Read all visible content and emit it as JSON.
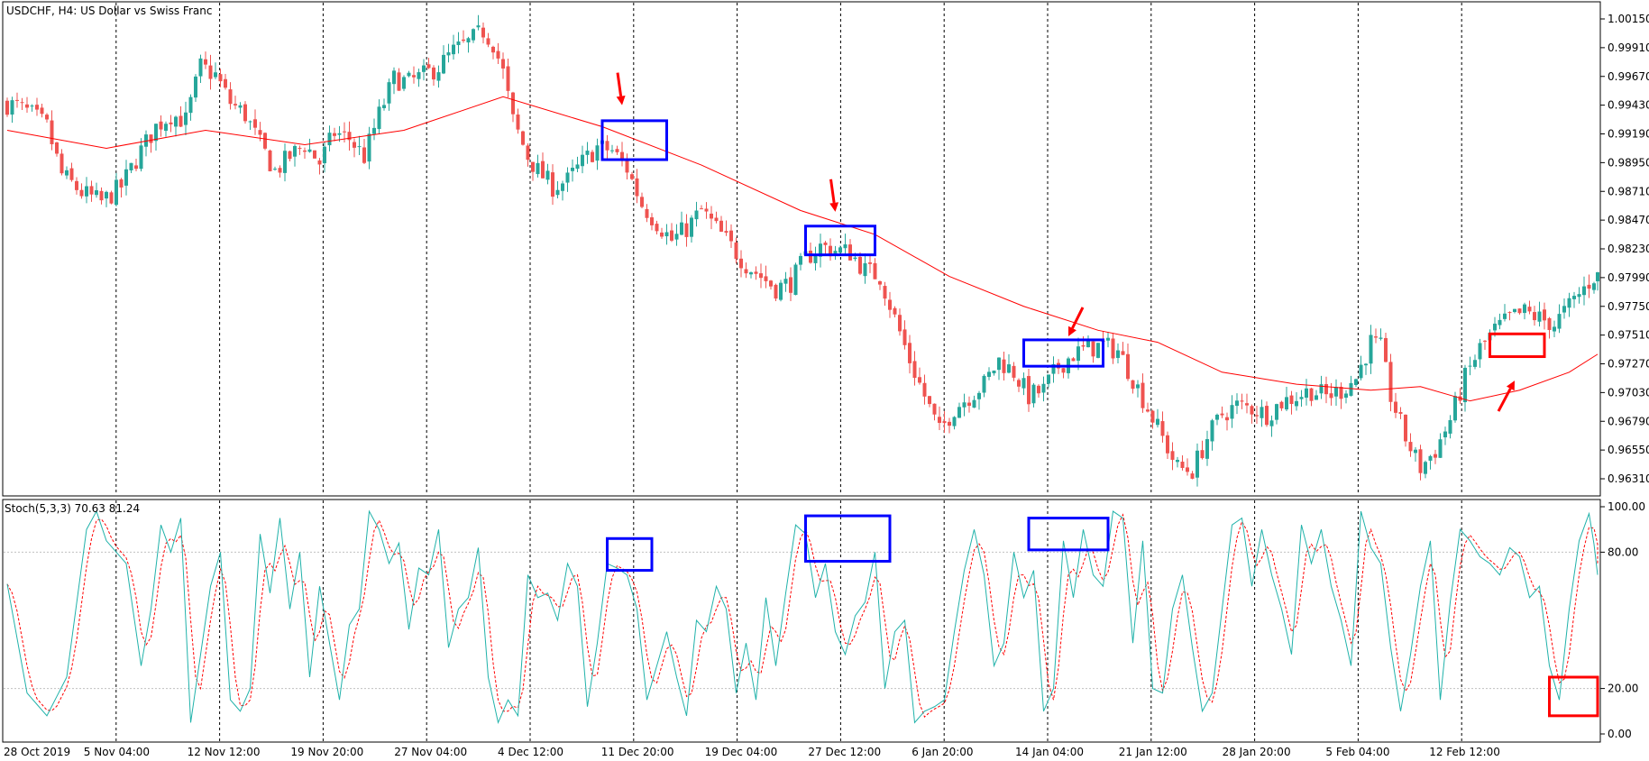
{
  "chart_data": [
    {
      "type": "candlestick",
      "symbol_label": "USDCHF, H4:  US Dollar vs Swiss Franc",
      "price_axis_ticks": [
        "1.00150",
        "0.99910",
        "0.99670",
        "0.99430",
        "0.99190",
        "0.98950",
        "0.98710",
        "0.98470",
        "0.98230",
        "0.97990",
        "0.97750",
        "0.97510",
        "0.97270",
        "0.97030",
        "0.96790",
        "0.96550",
        "0.96310"
      ],
      "ylim": [
        0.9613,
        1.0025
      ],
      "x_labels": [
        "28 Oct 2019",
        "5 Nov 04:00",
        "12 Nov 12:00",
        "19 Nov 20:00",
        "27 Nov 04:00",
        "4 Dec 12:00",
        "11 Dec 20:00",
        "19 Dec 04:00",
        "27 Dec 12:00",
        "6 Jan 20:00",
        "14 Jan 04:00",
        "21 Jan 12:00",
        "28 Jan 20:00",
        "5 Feb 04:00",
        "12 Feb 12:00"
      ],
      "price_path": [
        [
          0,
          0.9945
        ],
        [
          3,
          0.9942
        ],
        [
          6,
          0.9935
        ],
        [
          9,
          0.9925
        ],
        [
          12,
          0.9885
        ],
        [
          16,
          0.987
        ],
        [
          20,
          0.9862
        ],
        [
          24,
          0.9875
        ],
        [
          28,
          0.9905
        ],
        [
          31,
          0.9925
        ],
        [
          34,
          0.9935
        ],
        [
          37,
          0.993
        ],
        [
          40,
          0.9975
        ],
        [
          43,
          0.9968
        ],
        [
          46,
          0.9945
        ],
        [
          49,
          0.9935
        ],
        [
          52,
          0.991
        ],
        [
          55,
          0.9888
        ],
        [
          58,
          0.99
        ],
        [
          61,
          0.991
        ],
        [
          64,
          0.9895
        ],
        [
          67,
          0.992
        ],
        [
          70,
          0.9915
        ],
        [
          73,
          0.99
        ],
        [
          76,
          0.9935
        ],
        [
          79,
          0.9965
        ],
        [
          82,
          0.9962
        ],
        [
          85,
          0.9968
        ],
        [
          88,
          0.9975
        ],
        [
          91,
          0.9988
        ],
        [
          94,
          0.9995
        ],
        [
          97,
          1.0005
        ],
        [
          99,
          0.9995
        ],
        [
          101,
          0.997
        ],
        [
          103,
          0.993
        ],
        [
          106,
          0.99
        ],
        [
          108,
          0.9888
        ],
        [
          111,
          0.9875
        ],
        [
          114,
          0.988
        ],
        [
          117,
          0.9895
        ],
        [
          120,
          0.9908
        ],
        [
          123,
          0.9905
        ],
        [
          126,
          0.989
        ],
        [
          129,
          0.986
        ],
        [
          132,
          0.9845
        ],
        [
          135,
          0.983
        ],
        [
          138,
          0.984
        ],
        [
          141,
          0.9855
        ],
        [
          144,
          0.984
        ],
        [
          147,
          0.9825
        ],
        [
          150,
          0.981
        ],
        [
          153,
          0.98
        ],
        [
          156,
          0.979
        ],
        [
          159,
          0.9795
        ],
        [
          162,
          0.9815
        ],
        [
          165,
          0.9825
        ],
        [
          168,
          0.9822
        ],
        [
          171,
          0.982
        ],
        [
          174,
          0.9805
        ],
        [
          177,
          0.98
        ],
        [
          180,
          0.9765
        ],
        [
          183,
          0.973
        ],
        [
          186,
          0.97
        ],
        [
          189,
          0.967
        ],
        [
          192,
          0.969
        ],
        [
          195,
          0.97
        ],
        [
          198,
          0.971
        ],
        [
          201,
          0.973
        ],
        [
          204,
          0.972
        ],
        [
          207,
          0.97
        ],
        [
          210,
          0.9705
        ],
        [
          213,
          0.9725
        ],
        [
          216,
          0.9735
        ],
        [
          219,
          0.974
        ],
        [
          222,
          0.9742
        ],
        [
          225,
          0.9738
        ],
        [
          228,
          0.9715
        ],
        [
          231,
          0.969
        ],
        [
          234,
          0.9665
        ],
        [
          237,
          0.964
        ],
        [
          240,
          0.9638
        ],
        [
          243,
          0.9665
        ],
        [
          246,
          0.9685
        ],
        [
          249,
          0.9692
        ],
        [
          252,
          0.969
        ],
        [
          255,
          0.9685
        ],
        [
          258,
          0.9695
        ],
        [
          261,
          0.97
        ],
        [
          264,
          0.9705
        ],
        [
          267,
          0.97
        ],
        [
          270,
          0.9705
        ],
        [
          273,
          0.9715
        ],
        [
          276,
          0.9745
        ],
        [
          278,
          0.974
        ],
        [
          280,
          0.97
        ],
        [
          283,
          0.9665
        ],
        [
          286,
          0.964
        ],
        [
          289,
          0.9655
        ],
        [
          292,
          0.968
        ],
        [
          295,
          0.9715
        ],
        [
          298,
          0.974
        ],
        [
          301,
          0.9755
        ],
        [
          304,
          0.9765
        ],
        [
          307,
          0.977
        ],
        [
          310,
          0.9765
        ],
        [
          313,
          0.976
        ],
        [
          316,
          0.9775
        ],
        [
          319,
          0.979
        ],
        [
          321,
          0.98
        ]
      ],
      "ma_path": [
        [
          0,
          0.9922
        ],
        [
          20,
          0.9907
        ],
        [
          40,
          0.9922
        ],
        [
          60,
          0.991
        ],
        [
          80,
          0.9922
        ],
        [
          100,
          0.995
        ],
        [
          120,
          0.9925
        ],
        [
          140,
          0.9893
        ],
        [
          160,
          0.9855
        ],
        [
          175,
          0.9835
        ],
        [
          190,
          0.98
        ],
        [
          205,
          0.9775
        ],
        [
          220,
          0.9755
        ],
        [
          232,
          0.9745
        ],
        [
          245,
          0.972
        ],
        [
          260,
          0.971
        ],
        [
          275,
          0.9705
        ],
        [
          285,
          0.9708
        ],
        [
          295,
          0.9696
        ],
        [
          305,
          0.9705
        ],
        [
          315,
          0.972
        ],
        [
          321,
          0.9735
        ]
      ],
      "annotations": [
        {
          "type": "box",
          "color": "#0000ff",
          "x_range": [
            120,
            133
          ],
          "y_range": [
            0.98975,
            0.993
          ]
        },
        {
          "type": "box",
          "color": "#0000ff",
          "x_range": [
            161,
            175
          ],
          "y_range": [
            0.9818,
            0.9842
          ]
        },
        {
          "type": "box",
          "color": "#0000ff",
          "x_range": [
            205,
            221
          ],
          "y_range": [
            0.9725,
            0.9747
          ]
        },
        {
          "type": "box",
          "color": "#ff0000",
          "x_range": [
            299,
            310
          ],
          "y_range": [
            0.9733,
            0.9752
          ]
        },
        {
          "type": "arrow",
          "color": "#ff0000",
          "direction": "down",
          "at_x": 124,
          "at_y": 0.9943
        },
        {
          "type": "arrow",
          "color": "#ff0000",
          "direction": "down",
          "at_x": 167,
          "at_y": 0.9854
        },
        {
          "type": "arrow",
          "color": "#ff0000",
          "direction": "down-left",
          "at_x": 214,
          "at_y": 0.975
        },
        {
          "type": "arrow",
          "color": "#ff0000",
          "direction": "up-right",
          "at_x": 304,
          "at_y": 0.9713
        }
      ]
    },
    {
      "type": "line",
      "indicator_label": "Stoch(5,3,3) 70.63 81.24",
      "axis_ticks": [
        "100.00",
        "80.00",
        "20.00",
        "0.00"
      ],
      "ylim": [
        0,
        100
      ],
      "levels": [
        80,
        20
      ],
      "k_path": [
        [
          0,
          66
        ],
        [
          4,
          18
        ],
        [
          8,
          8
        ],
        [
          12,
          25
        ],
        [
          16,
          90
        ],
        [
          18,
          98
        ],
        [
          20,
          85
        ],
        [
          24,
          75
        ],
        [
          27,
          30
        ],
        [
          29,
          55
        ],
        [
          31,
          92
        ],
        [
          33,
          80
        ],
        [
          35,
          95
        ],
        [
          37,
          5
        ],
        [
          39,
          35
        ],
        [
          41,
          65
        ],
        [
          43,
          80
        ],
        [
          45,
          15
        ],
        [
          47,
          10
        ],
        [
          49,
          20
        ],
        [
          51,
          88
        ],
        [
          53,
          62
        ],
        [
          55,
          95
        ],
        [
          57,
          55
        ],
        [
          59,
          80
        ],
        [
          61,
          25
        ],
        [
          63,
          65
        ],
        [
          67,
          15
        ],
        [
          69,
          48
        ],
        [
          71,
          55
        ],
        [
          73,
          98
        ],
        [
          75,
          90
        ],
        [
          77,
          75
        ],
        [
          79,
          84
        ],
        [
          81,
          46
        ],
        [
          83,
          73
        ],
        [
          85,
          70
        ],
        [
          87,
          90
        ],
        [
          89,
          38
        ],
        [
          91,
          55
        ],
        [
          93,
          60
        ],
        [
          95,
          82
        ],
        [
          97,
          25
        ],
        [
          99,
          5
        ],
        [
          101,
          15
        ],
        [
          103,
          8
        ],
        [
          105,
          70
        ],
        [
          107,
          60
        ],
        [
          109,
          62
        ],
        [
          111,
          50
        ],
        [
          113,
          75
        ],
        [
          115,
          65
        ],
        [
          117,
          12
        ],
        [
          119,
          40
        ],
        [
          121,
          75
        ],
        [
          123,
          73
        ],
        [
          125,
          70
        ],
        [
          127,
          55
        ],
        [
          129,
          15
        ],
        [
          131,
          30
        ],
        [
          133,
          45
        ],
        [
          135,
          25
        ],
        [
          137,
          8
        ],
        [
          139,
          50
        ],
        [
          141,
          45
        ],
        [
          143,
          65
        ],
        [
          145,
          55
        ],
        [
          147,
          18
        ],
        [
          149,
          40
        ],
        [
          151,
          15
        ],
        [
          153,
          60
        ],
        [
          155,
          30
        ],
        [
          157,
          62
        ],
        [
          159,
          92
        ],
        [
          161,
          88
        ],
        [
          163,
          60
        ],
        [
          165,
          75
        ],
        [
          167,
          45
        ],
        [
          169,
          35
        ],
        [
          171,
          52
        ],
        [
          173,
          58
        ],
        [
          175,
          80
        ],
        [
          177,
          20
        ],
        [
          179,
          45
        ],
        [
          181,
          50
        ],
        [
          183,
          5
        ],
        [
          185,
          10
        ],
        [
          187,
          12
        ],
        [
          189,
          15
        ],
        [
          191,
          45
        ],
        [
          193,
          72
        ],
        [
          195,
          90
        ],
        [
          197,
          70
        ],
        [
          199,
          30
        ],
        [
          201,
          40
        ],
        [
          203,
          80
        ],
        [
          205,
          60
        ],
        [
          207,
          72
        ],
        [
          209,
          10
        ],
        [
          211,
          20
        ],
        [
          213,
          85
        ],
        [
          215,
          60
        ],
        [
          217,
          90
        ],
        [
          219,
          70
        ],
        [
          221,
          65
        ],
        [
          223,
          98
        ],
        [
          225,
          95
        ],
        [
          227,
          40
        ],
        [
          229,
          85
        ],
        [
          231,
          20
        ],
        [
          233,
          18
        ],
        [
          235,
          55
        ],
        [
          237,
          70
        ],
        [
          239,
          38
        ],
        [
          241,
          10
        ],
        [
          243,
          18
        ],
        [
          245,
          55
        ],
        [
          247,
          92
        ],
        [
          249,
          95
        ],
        [
          251,
          65
        ],
        [
          253,
          90
        ],
        [
          255,
          70
        ],
        [
          257,
          55
        ],
        [
          259,
          35
        ],
        [
          261,
          92
        ],
        [
          263,
          75
        ],
        [
          265,
          90
        ],
        [
          267,
          65
        ],
        [
          269,
          50
        ],
        [
          271,
          30
        ],
        [
          273,
          98
        ],
        [
          275,
          82
        ],
        [
          277,
          75
        ],
        [
          279,
          38
        ],
        [
          281,
          10
        ],
        [
          283,
          35
        ],
        [
          285,
          65
        ],
        [
          287,
          85
        ],
        [
          289,
          15
        ],
        [
          291,
          58
        ],
        [
          293,
          90
        ],
        [
          295,
          85
        ],
        [
          297,
          78
        ],
        [
          299,
          75
        ],
        [
          301,
          70
        ],
        [
          303,
          82
        ],
        [
          305,
          78
        ],
        [
          307,
          60
        ],
        [
          309,
          65
        ],
        [
          311,
          30
        ],
        [
          313,
          15
        ],
        [
          315,
          55
        ],
        [
          317,
          85
        ],
        [
          319,
          97
        ],
        [
          321,
          70
        ]
      ],
      "annotations": [
        {
          "type": "box",
          "color": "#0000ff",
          "x_range": [
            121,
            130
          ],
          "y_range": [
            72,
            86
          ]
        },
        {
          "type": "box",
          "color": "#0000ff",
          "x_range": [
            161,
            178
          ],
          "y_range": [
            76,
            96
          ]
        },
        {
          "type": "box",
          "color": "#0000ff",
          "x_range": [
            206,
            222
          ],
          "y_range": [
            81,
            95
          ]
        },
        {
          "type": "box",
          "color": "#ff0000",
          "x_range": [
            311,
            325
          ],
          "y_range": [
            8,
            25
          ]
        }
      ]
    }
  ]
}
